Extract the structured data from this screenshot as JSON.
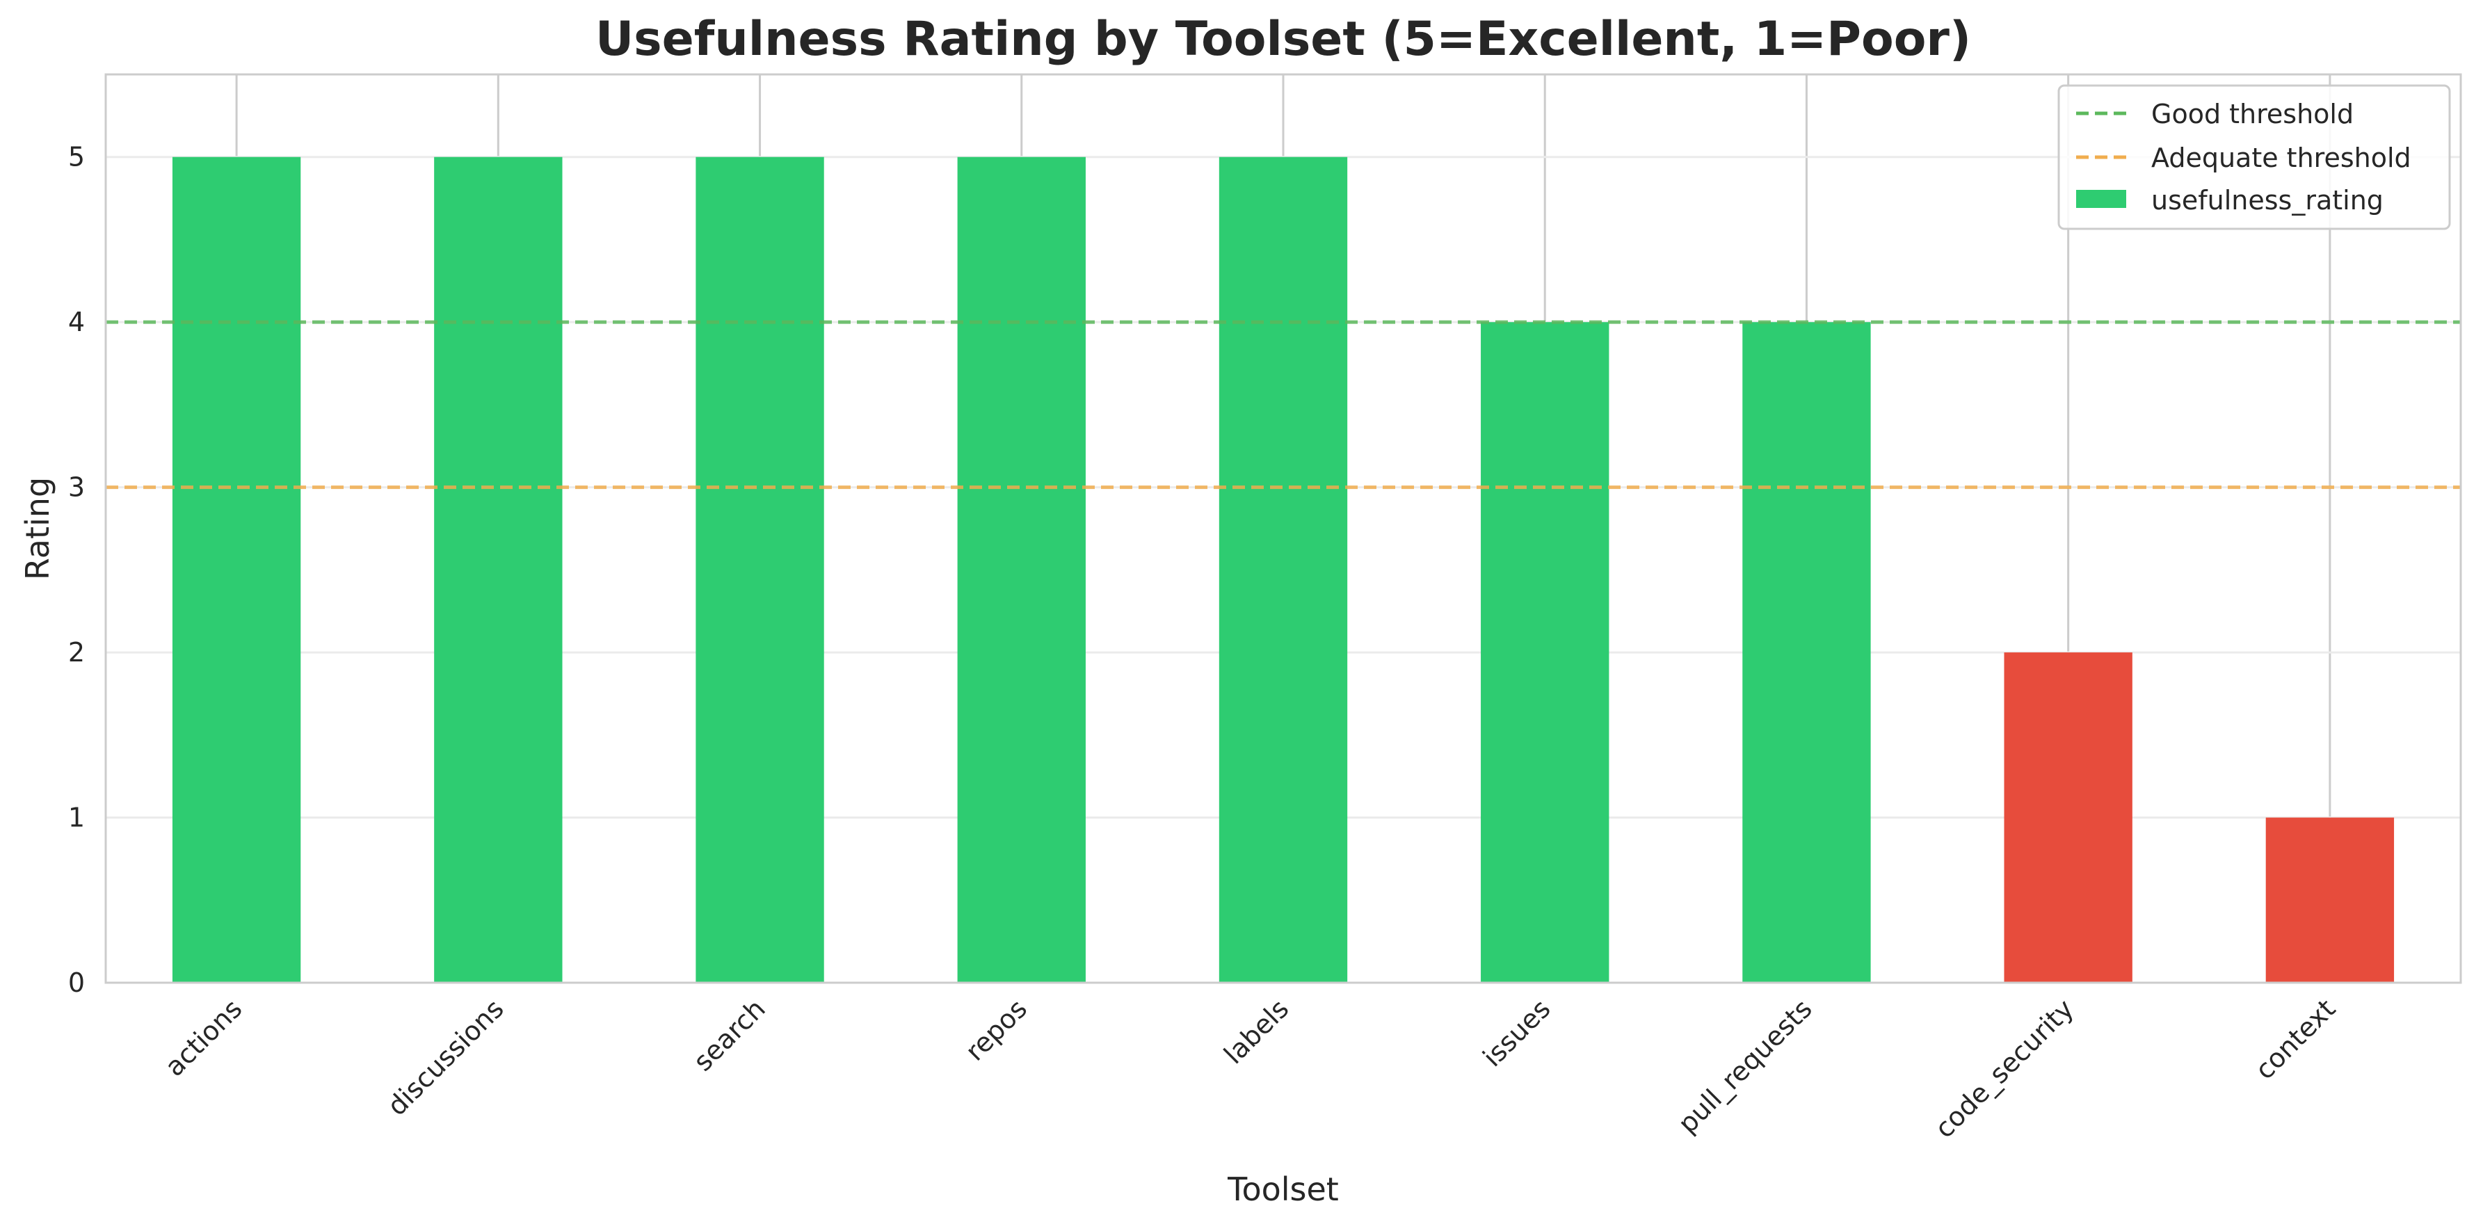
{
  "chart_data": {
    "type": "bar",
    "title": "Usefulness Rating by Toolset (5=Excellent, 1=Poor)",
    "xlabel": "Toolset",
    "ylabel": "Rating",
    "ylim": [
      0,
      5.5
    ],
    "yticks": [
      "0",
      "1",
      "2",
      "3",
      "4",
      "5"
    ],
    "grid": true,
    "legend_position": "top-right",
    "categories": [
      "actions",
      "discussions",
      "search",
      "repos",
      "labels",
      "issues",
      "pull_requests",
      "code_security",
      "context"
    ],
    "series": [
      {
        "name": "usefulness_rating",
        "values": [
          5,
          5,
          5,
          5,
          5,
          4,
          4,
          2,
          1
        ],
        "colors": [
          "#2ecc71",
          "#2ecc71",
          "#2ecc71",
          "#2ecc71",
          "#2ecc71",
          "#2ecc71",
          "#2ecc71",
          "#e74c3c",
          "#e74c3c"
        ]
      }
    ],
    "reference_lines": [
      {
        "name": "Good threshold",
        "y": 4,
        "color": "#5cb85c"
      },
      {
        "name": "Adequate threshold",
        "y": 3,
        "color": "#f0ad4e"
      }
    ]
  }
}
